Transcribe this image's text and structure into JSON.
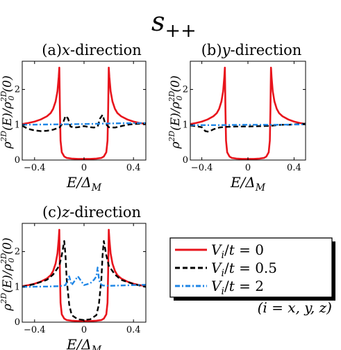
{
  "figure": {
    "title_main": "s",
    "title_sub": "++"
  },
  "legend": {
    "entries": [
      {
        "var": "V",
        "sub": "i",
        "rest": "/t = 0",
        "color": "#e8141c",
        "dash": "solid"
      },
      {
        "var": "V",
        "sub": "i",
        "rest": "/t = 0.5",
        "color": "#000000",
        "dash": "dash"
      },
      {
        "var": "V",
        "sub": "i",
        "rest": "/t = 2",
        "color": "#1f86e6",
        "dash": "dashdot"
      }
    ],
    "note": "(i = x, y, z)"
  },
  "chart_data": [
    {
      "type": "line",
      "panel_id": "a",
      "title_prefix": "(a)",
      "title_var": "x",
      "title_suffix": "-direction",
      "xlabel": "E/ΔM",
      "ylabel": "ρ2D(E)/ρ2D0(0)",
      "xlim": [
        -0.5,
        0.5
      ],
      "ylim": [
        0,
        2.8
      ],
      "xticks": [
        -0.4,
        0,
        0.4
      ],
      "xtick_labels": [
        "−0.4",
        "0",
        "0.4"
      ],
      "yticks": [
        0,
        1,
        2
      ],
      "ytick_labels": [
        "0",
        "1",
        "2"
      ],
      "grid": false,
      "series": [
        {
          "name": "Vi/t = 0",
          "color": "#e8141c",
          "dash": "solid",
          "x": [
            -0.5,
            -0.45,
            -0.4,
            -0.35,
            -0.3,
            -0.27,
            -0.25,
            -0.23,
            -0.215,
            -0.205,
            -0.2,
            -0.195,
            -0.19,
            -0.18,
            -0.16,
            -0.14,
            -0.1,
            -0.05,
            0,
            0.05,
            0.1,
            0.14,
            0.16,
            0.18,
            0.19,
            0.195,
            0.2,
            0.205,
            0.215,
            0.23,
            0.25,
            0.27,
            0.3,
            0.35,
            0.4,
            0.45,
            0.5
          ],
          "y": [
            1.02,
            1.05,
            1.09,
            1.15,
            1.24,
            1.33,
            1.45,
            1.66,
            1.95,
            2.35,
            2.62,
            1.4,
            0.55,
            0.22,
            0.1,
            0.06,
            0.04,
            0.03,
            0.03,
            0.03,
            0.04,
            0.06,
            0.1,
            0.22,
            0.55,
            1.4,
            2.62,
            2.35,
            1.95,
            1.66,
            1.45,
            1.33,
            1.24,
            1.15,
            1.09,
            1.05,
            1.02
          ]
        },
        {
          "name": "Vi/t = 0.5",
          "color": "#000000",
          "dash": "dash",
          "x": [
            -0.5,
            -0.45,
            -0.4,
            -0.35,
            -0.3,
            -0.25,
            -0.2,
            -0.17,
            -0.15,
            -0.13,
            -0.11,
            -0.08,
            -0.05,
            0,
            0.05,
            0.08,
            0.11,
            0.13,
            0.15,
            0.17,
            0.2,
            0.25,
            0.3,
            0.35,
            0.4,
            0.45,
            0.5
          ],
          "y": [
            0.97,
            0.88,
            0.84,
            0.82,
            0.83,
            0.86,
            0.92,
            1.05,
            1.25,
            1.18,
            0.95,
            0.92,
            0.93,
            0.96,
            0.93,
            0.92,
            0.95,
            1.18,
            1.28,
            1.05,
            0.93,
            0.92,
            0.96,
            1.0,
            1.02,
            1.03,
            1.04
          ]
        },
        {
          "name": "Vi/t = 2",
          "color": "#1f86e6",
          "dash": "dashdot",
          "x": [
            -0.5,
            -0.25,
            0,
            0.25,
            0.5
          ],
          "y": [
            1.0,
            1.01,
            1.02,
            1.04,
            1.05
          ]
        }
      ]
    },
    {
      "type": "line",
      "panel_id": "b",
      "title_prefix": "(b)",
      "title_var": "y",
      "title_suffix": "-direction",
      "xlabel": "E/ΔM",
      "ylabel": "ρ2D(E)/ρ2D0(0)",
      "xlim": [
        -0.5,
        0.5
      ],
      "ylim": [
        0,
        2.8
      ],
      "xticks": [
        -0.4,
        0,
        0.4
      ],
      "xtick_labels": [
        "−0.4",
        "0",
        "0.4"
      ],
      "yticks": [
        0,
        1,
        2
      ],
      "ytick_labels": [
        "0",
        "1",
        "2"
      ],
      "grid": false,
      "series": [
        {
          "name": "Vi/t = 0",
          "color": "#e8141c",
          "dash": "solid",
          "x": [
            -0.5,
            -0.45,
            -0.4,
            -0.35,
            -0.3,
            -0.27,
            -0.25,
            -0.23,
            -0.215,
            -0.205,
            -0.2,
            -0.195,
            -0.19,
            -0.18,
            -0.16,
            -0.14,
            -0.1,
            -0.05,
            0,
            0.05,
            0.1,
            0.14,
            0.16,
            0.18,
            0.19,
            0.195,
            0.2,
            0.205,
            0.215,
            0.23,
            0.25,
            0.27,
            0.3,
            0.35,
            0.4,
            0.45,
            0.5
          ],
          "y": [
            1.02,
            1.05,
            1.09,
            1.15,
            1.24,
            1.33,
            1.45,
            1.66,
            1.95,
            2.35,
            2.62,
            1.4,
            0.55,
            0.22,
            0.1,
            0.06,
            0.04,
            0.03,
            0.03,
            0.03,
            0.04,
            0.06,
            0.1,
            0.22,
            0.55,
            1.4,
            2.62,
            2.35,
            1.95,
            1.66,
            1.45,
            1.33,
            1.24,
            1.15,
            1.09,
            1.05,
            1.02
          ]
        },
        {
          "name": "Vi/t = 0.5",
          "color": "#000000",
          "dash": "dash",
          "x": [
            -0.5,
            -0.45,
            -0.4,
            -0.37,
            -0.34,
            -0.3,
            -0.25,
            -0.2,
            -0.1,
            0,
            0.1,
            0.2,
            0.25,
            0.3,
            0.35,
            0.4,
            0.45,
            0.5
          ],
          "y": [
            0.98,
            0.96,
            0.93,
            0.82,
            0.8,
            0.87,
            0.92,
            0.94,
            0.95,
            0.95,
            0.96,
            0.97,
            0.99,
            1.0,
            1.0,
            1.01,
            1.02,
            1.03
          ]
        },
        {
          "name": "Vi/t = 2",
          "color": "#1f86e6",
          "dash": "dashdot",
          "x": [
            -0.5,
            -0.25,
            0,
            0.25,
            0.5
          ],
          "y": [
            0.99,
            0.99,
            1.0,
            1.0,
            1.01
          ]
        }
      ]
    },
    {
      "type": "line",
      "panel_id": "c",
      "title_prefix": "(c)",
      "title_var": "z",
      "title_suffix": "-direction",
      "xlabel": "E/ΔM",
      "ylabel": "ρ2D(E)/ρ2D0(0)",
      "xlim": [
        -0.5,
        0.5
      ],
      "ylim": [
        0,
        2.8
      ],
      "xticks": [
        -0.4,
        0,
        0.4
      ],
      "xtick_labels": [
        "−0.4",
        "0",
        "0.4"
      ],
      "yticks": [
        0,
        1,
        2
      ],
      "ytick_labels": [
        "0",
        "1",
        "2"
      ],
      "grid": false,
      "series": [
        {
          "name": "Vi/t = 0",
          "color": "#e8141c",
          "dash": "solid",
          "x": [
            -0.5,
            -0.45,
            -0.4,
            -0.35,
            -0.3,
            -0.27,
            -0.25,
            -0.23,
            -0.215,
            -0.205,
            -0.2,
            -0.195,
            -0.19,
            -0.18,
            -0.16,
            -0.14,
            -0.1,
            -0.05,
            0,
            0.05,
            0.1,
            0.14,
            0.16,
            0.18,
            0.19,
            0.195,
            0.2,
            0.205,
            0.215,
            0.23,
            0.25,
            0.27,
            0.3,
            0.35,
            0.4,
            0.45,
            0.5
          ],
          "y": [
            1.02,
            1.05,
            1.09,
            1.15,
            1.24,
            1.33,
            1.45,
            1.66,
            1.95,
            2.35,
            2.62,
            1.4,
            0.55,
            0.22,
            0.1,
            0.06,
            0.04,
            0.03,
            0.03,
            0.03,
            0.04,
            0.06,
            0.1,
            0.22,
            0.55,
            1.4,
            2.62,
            2.35,
            1.95,
            1.66,
            1.45,
            1.33,
            1.24,
            1.15,
            1.09,
            1.05,
            1.02
          ]
        },
        {
          "name": "Vi/t = 0.5",
          "color": "#000000",
          "dash": "dash",
          "x": [
            -0.5,
            -0.4,
            -0.3,
            -0.25,
            -0.2,
            -0.18,
            -0.16,
            -0.15,
            -0.14,
            -0.12,
            -0.1,
            -0.05,
            0,
            0.05,
            0.1,
            0.12,
            0.14,
            0.15,
            0.16,
            0.18,
            0.2,
            0.25,
            0.3,
            0.4,
            0.5
          ],
          "y": [
            1.0,
            1.08,
            1.2,
            1.35,
            1.6,
            1.9,
            2.3,
            1.9,
            1.2,
            0.5,
            0.2,
            0.08,
            0.06,
            0.08,
            0.2,
            0.5,
            1.2,
            1.9,
            2.3,
            1.9,
            1.6,
            1.35,
            1.2,
            1.08,
            1.0
          ]
        },
        {
          "name": "Vi/t = 2",
          "color": "#1f86e6",
          "dash": "dashdot",
          "x": [
            -0.5,
            -0.3,
            -0.2,
            -0.15,
            -0.12,
            -0.1,
            -0.08,
            -0.05,
            0,
            0.05,
            0.08,
            0.1,
            0.11,
            0.12,
            0.13,
            0.15,
            0.2,
            0.3,
            0.5
          ],
          "y": [
            1.0,
            1.01,
            1.02,
            1.05,
            1.3,
            1.05,
            1.15,
            1.3,
            1.05,
            1.1,
            1.2,
            1.3,
            1.55,
            1.25,
            1.1,
            1.04,
            1.03,
            1.04,
            1.06
          ]
        }
      ]
    }
  ]
}
